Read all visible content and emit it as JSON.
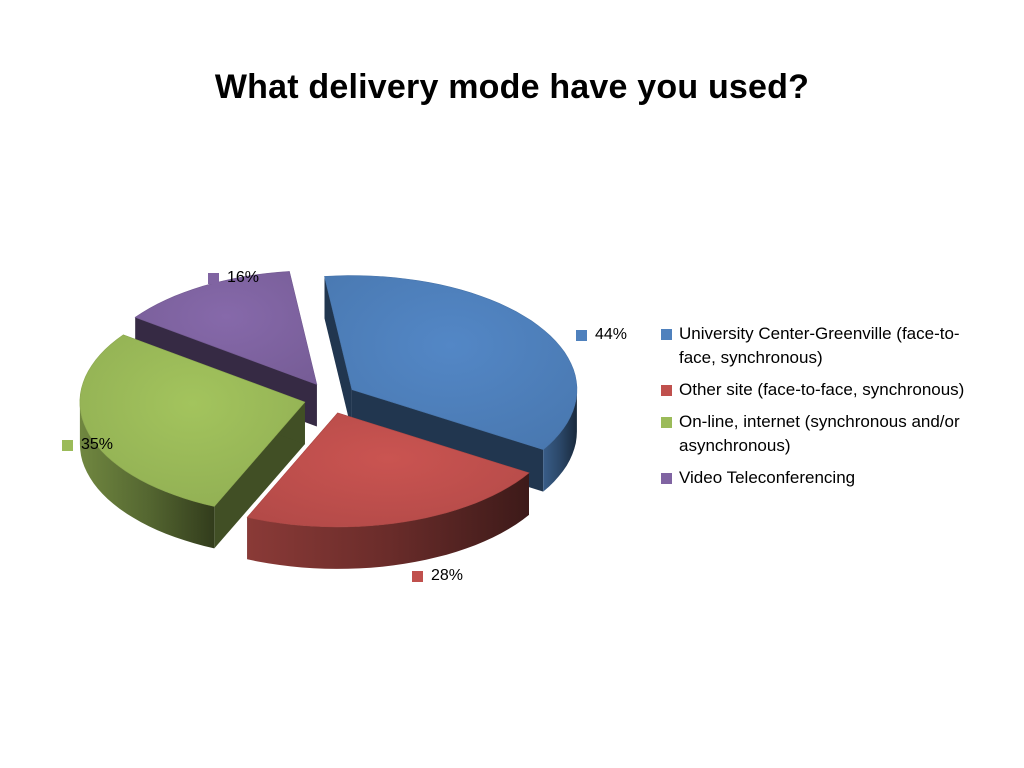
{
  "slide": {
    "title": "What delivery mode have you used?"
  },
  "chart_data": {
    "type": "pie",
    "variant": "3d-exploded",
    "title": "",
    "categories": [
      "University Center-Greenville (face-to-face, synchronous)",
      "Other site (face-to-face, synchronous)",
      "On-line, internet (synchronous and/or asynchronous)",
      "Video Teleconferencing"
    ],
    "values": [
      44,
      28,
      35,
      16
    ],
    "data_labels": [
      "44%",
      "28%",
      "35%",
      "16%"
    ],
    "colors": [
      "#4F81BD",
      "#C0504D",
      "#9BBB59",
      "#8064A2"
    ],
    "legend": {
      "position": "right",
      "items": [
        "University Center-Greenville (face-to-face, synchronous)",
        "Other site (face-to-face, synchronous)",
        "On-line, internet (synchronous and/or asynchronous)",
        "Video Teleconferencing"
      ]
    }
  }
}
